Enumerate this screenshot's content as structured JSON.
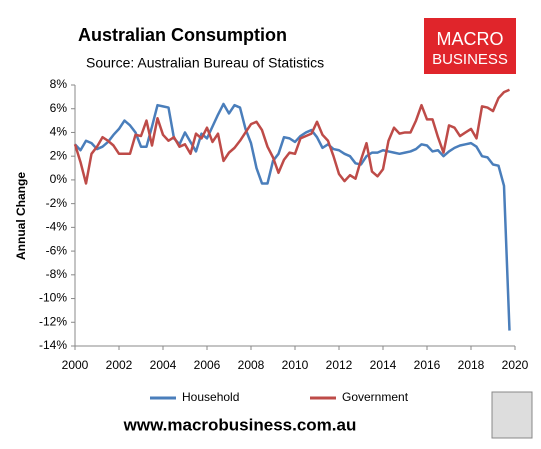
{
  "chart_data": {
    "type": "line",
    "title": "Australian Consumption",
    "subtitle": "Source: Australian Bureau of Statistics",
    "y_label": "Annual Change",
    "logo": [
      "MACRO",
      "BUSINESS"
    ],
    "footer": "www.macrobusiness.com.au",
    "x": [
      2000,
      2000.25,
      2000.5,
      2000.75,
      2001,
      2001.25,
      2001.5,
      2001.75,
      2002,
      2002.25,
      2002.5,
      2002.75,
      2003,
      2003.25,
      2003.5,
      2003.75,
      2004,
      2004.25,
      2004.5,
      2004.75,
      2005,
      2005.25,
      2005.5,
      2005.75,
      2006,
      2006.25,
      2006.5,
      2006.75,
      2007,
      2007.25,
      2007.5,
      2007.75,
      2008,
      2008.25,
      2008.5,
      2008.75,
      2009,
      2009.25,
      2009.5,
      2009.75,
      2010,
      2010.25,
      2010.5,
      2010.75,
      2011,
      2011.25,
      2011.5,
      2011.75,
      2012,
      2012.25,
      2012.5,
      2012.75,
      2013,
      2013.25,
      2013.5,
      2013.75,
      2014,
      2014.25,
      2014.5,
      2014.75,
      2015,
      2015.25,
      2015.5,
      2015.75,
      2016,
      2016.25,
      2016.5,
      2016.75,
      2017,
      2017.25,
      2017.5,
      2017.75,
      2018,
      2018.25,
      2018.5,
      2018.75,
      2019,
      2019.25,
      2019.5,
      2019.75
    ],
    "series": [
      {
        "name": "Household",
        "color": "#4a7ebb",
        "values": [
          3.0,
          2.5,
          3.3,
          3.1,
          2.6,
          2.8,
          3.2,
          3.8,
          4.3,
          5.0,
          4.6,
          4.0,
          2.8,
          2.8,
          4.5,
          6.3,
          6.2,
          6.1,
          3.5,
          3.0,
          4.0,
          3.2,
          2.4,
          3.9,
          3.5,
          4.5,
          5.5,
          6.4,
          5.6,
          6.3,
          6.1,
          4.3,
          3.1,
          1.0,
          -0.3,
          -0.3,
          1.6,
          2.2,
          3.6,
          3.5,
          3.2,
          3.7,
          4.0,
          4.2,
          3.6,
          2.7,
          3.0,
          2.6,
          2.5,
          2.2,
          2.0,
          1.4,
          1.3,
          2.0,
          2.3,
          2.3,
          2.5,
          2.4,
          2.3,
          2.2,
          2.3,
          2.4,
          2.6,
          3.0,
          2.9,
          2.4,
          2.5,
          2.0,
          2.4,
          2.7,
          2.9,
          3.0,
          3.1,
          2.8,
          2.0,
          1.9,
          1.3,
          1.2,
          -0.5,
          -12.7
        ]
      },
      {
        "name": "Government",
        "color": "#be4b48",
        "values": [
          3.0,
          1.5,
          -0.3,
          2.2,
          2.8,
          3.6,
          3.3,
          2.9,
          2.2,
          2.2,
          2.2,
          3.8,
          3.7,
          5.0,
          2.9,
          5.2,
          3.8,
          3.3,
          3.6,
          2.8,
          3.0,
          2.2,
          3.9,
          3.5,
          4.4,
          3.2,
          3.9,
          1.6,
          2.3,
          2.7,
          3.3,
          4.0,
          4.7,
          4.9,
          4.2,
          2.8,
          1.9,
          0.6,
          1.7,
          2.3,
          2.2,
          3.5,
          3.7,
          3.9,
          4.9,
          3.8,
          3.3,
          2.0,
          0.5,
          -0.1,
          0.4,
          0.1,
          1.7,
          3.1,
          0.7,
          0.3,
          0.9,
          3.3,
          4.4,
          3.9,
          4.0,
          4.0,
          5.0,
          6.3,
          5.1,
          5.1,
          3.6,
          2.3,
          4.6,
          4.4,
          3.7,
          4.0,
          4.3,
          3.5,
          6.2,
          6.1,
          5.8,
          6.9,
          7.4,
          7.6
        ]
      }
    ],
    "xlim": [
      2000,
      2020
    ],
    "xticks": [
      2000,
      2002,
      2004,
      2006,
      2008,
      2010,
      2012,
      2014,
      2016,
      2018,
      2020
    ],
    "ylim": [
      -14,
      8
    ],
    "yticks": [
      {
        "value": 8,
        "label": "8%"
      },
      {
        "value": 6,
        "label": "6%"
      },
      {
        "value": 4,
        "label": "4%"
      },
      {
        "value": 2,
        "label": "2%"
      },
      {
        "value": 0,
        "label": "0%"
      },
      {
        "value": -2,
        "label": "-2%"
      },
      {
        "value": -4,
        "label": "-4%"
      },
      {
        "value": -6,
        "label": "-6%"
      },
      {
        "value": -8,
        "label": "-8%"
      },
      {
        "value": -10,
        "label": "-10%"
      },
      {
        "value": -12,
        "label": "-12%"
      },
      {
        "value": -14,
        "label": "-14%"
      }
    ],
    "grid": false,
    "legend": "bottom"
  }
}
